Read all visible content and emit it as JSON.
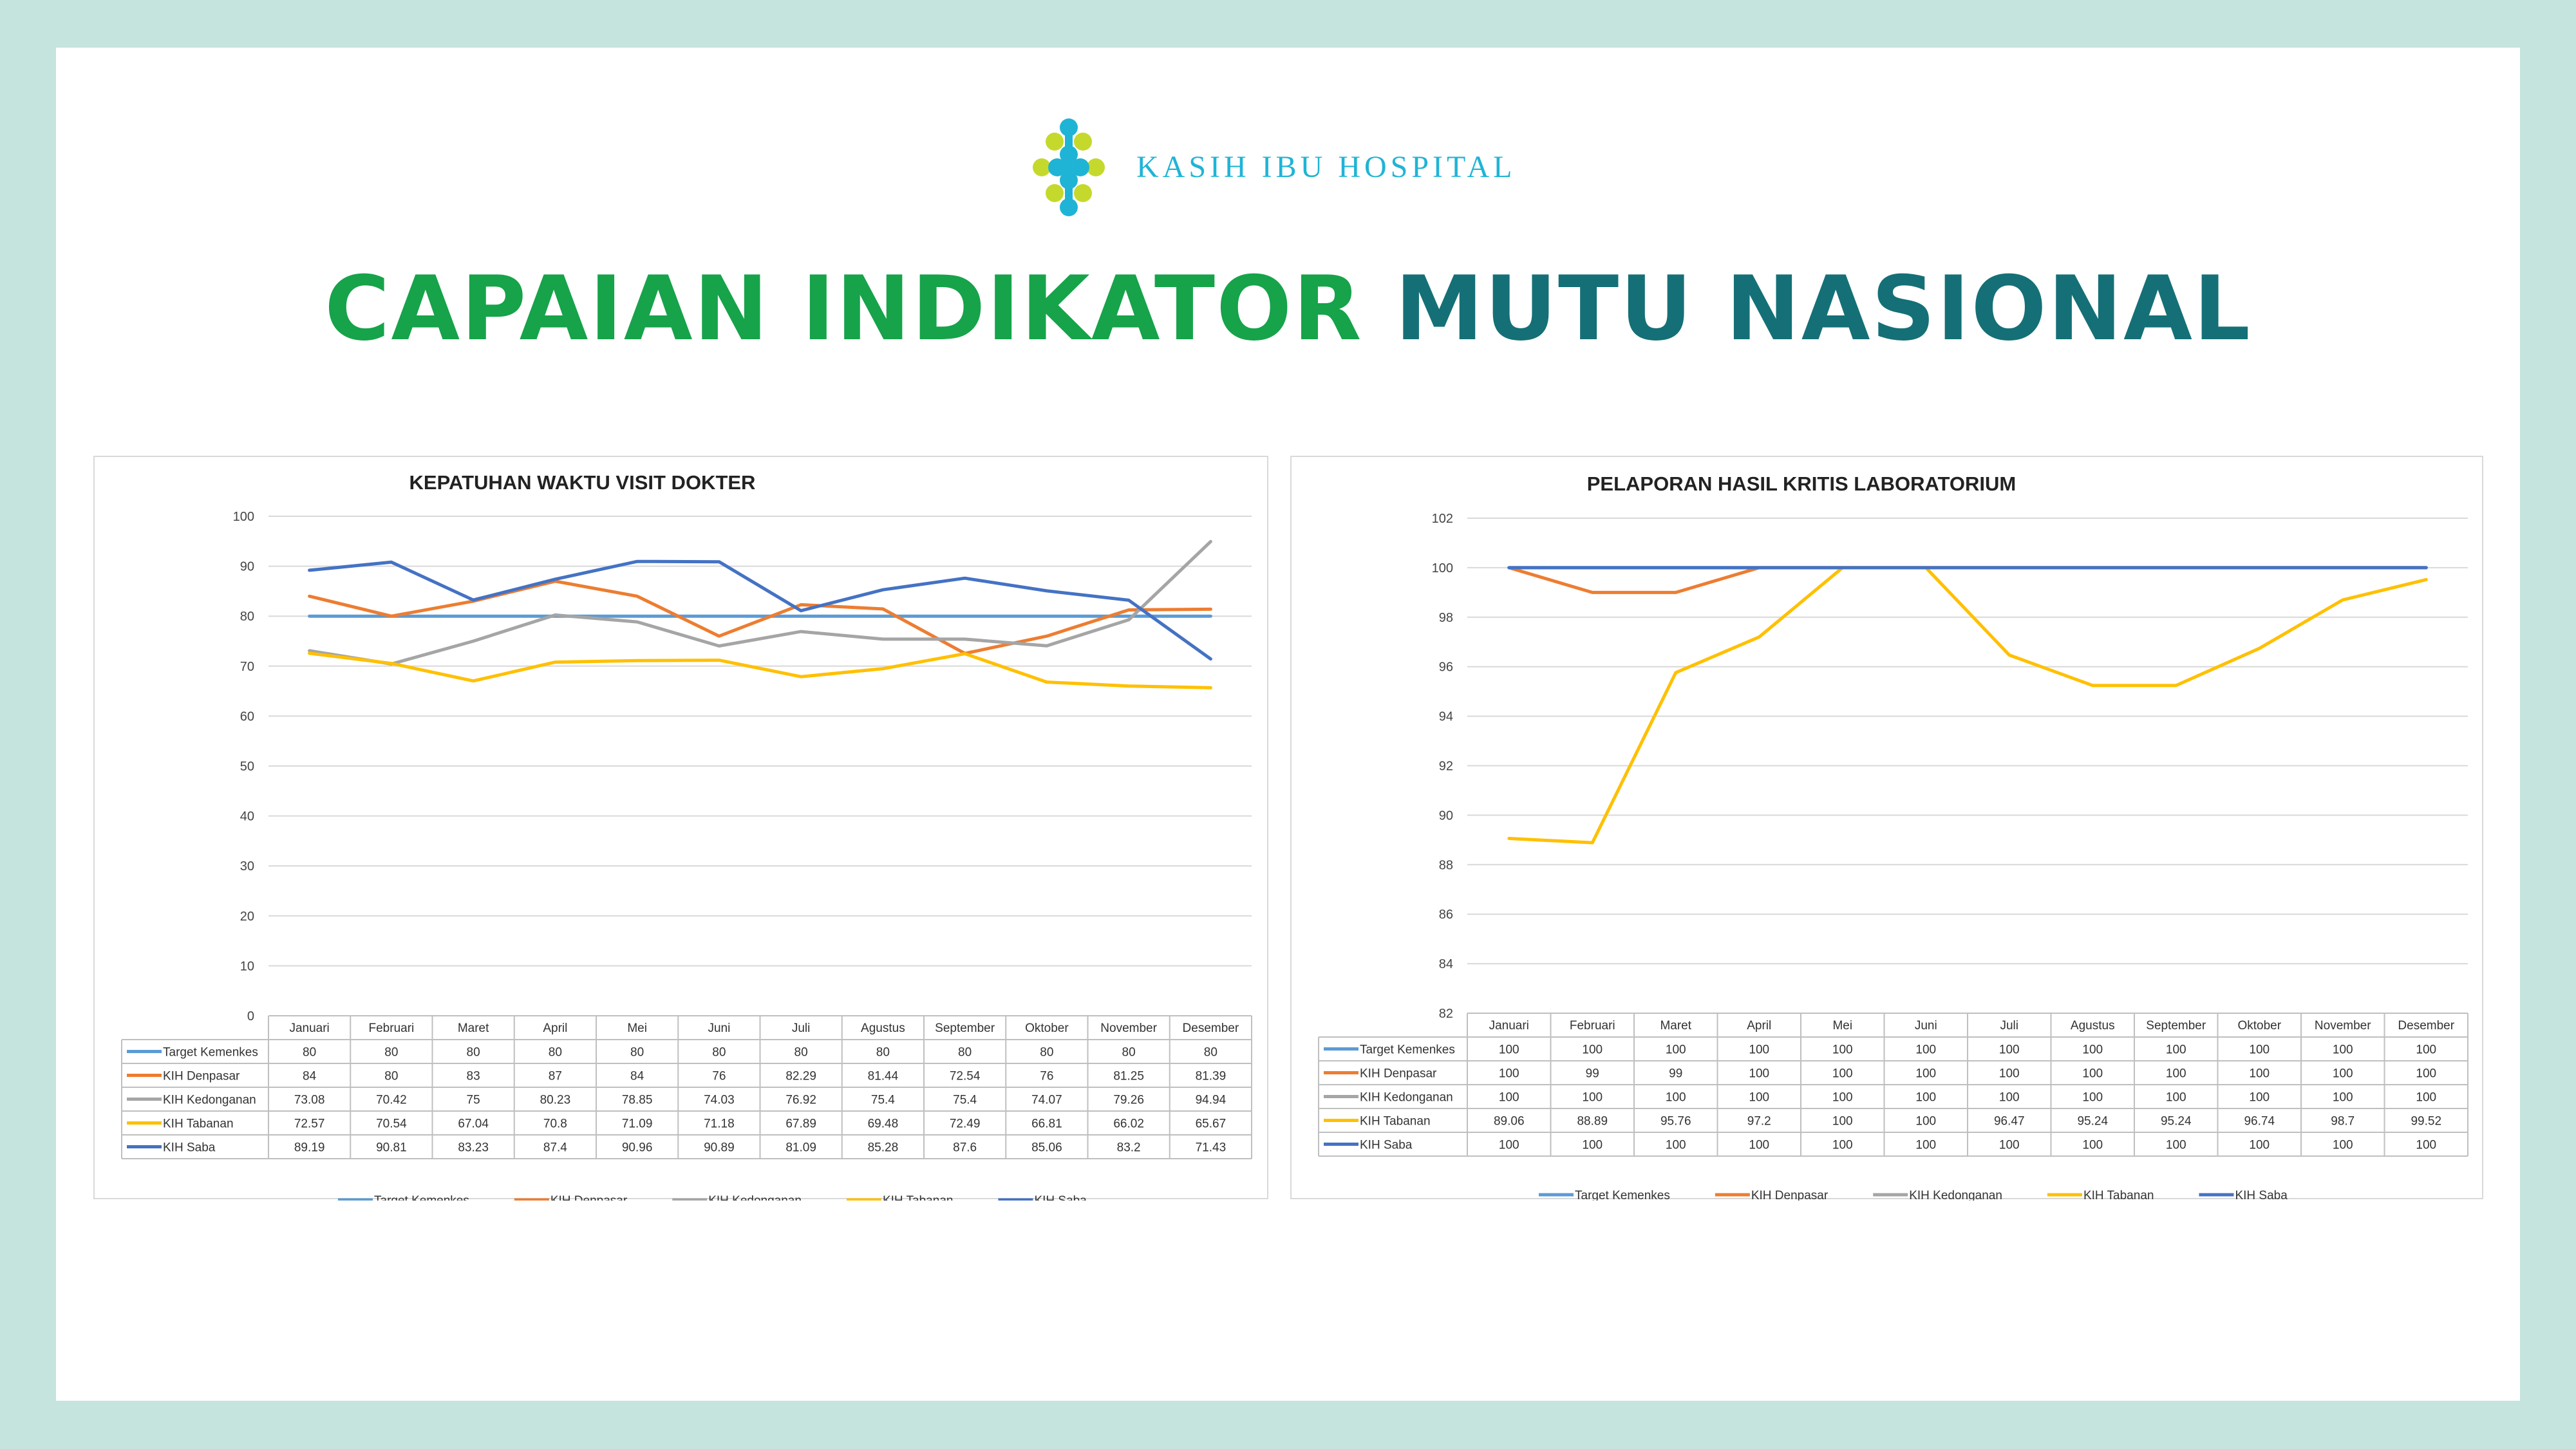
{
  "brand": {
    "name": "KASIH IBU HOSPITAL"
  },
  "page_title": {
    "part1": "CAPAIAN INDIKATOR",
    "part2": "MUTU NASIONAL"
  },
  "colors": {
    "background": "#c5e4dd",
    "title_green": "#16a34a",
    "title_teal": "#147076",
    "brand_blue": "#1fb4d6",
    "logo_lime": "#c5d92d"
  },
  "chart_data": [
    {
      "type": "line",
      "title": "KEPATUHAN WAKTU VISIT DOKTER",
      "categories": [
        "Januari",
        "Februari",
        "Maret",
        "April",
        "Mei",
        "Juni",
        "Juli",
        "Agustus",
        "September",
        "Oktober",
        "November",
        "Desember"
      ],
      "ylim": [
        0,
        100
      ],
      "yticks": [
        0,
        10,
        20,
        30,
        40,
        50,
        60,
        70,
        80,
        90,
        100
      ],
      "grid": true,
      "legend": "bottom",
      "data_table": true,
      "series": [
        {
          "name": "Target Kemenkes",
          "color": "#5b9bd5",
          "values": [
            80,
            80,
            80,
            80,
            80,
            80,
            80,
            80,
            80,
            80,
            80,
            80
          ]
        },
        {
          "name": "KIH Denpasar",
          "color": "#ed7d31",
          "values": [
            84,
            80,
            83,
            87,
            84,
            76,
            82.29,
            81.44,
            72.54,
            76,
            81.25,
            81.39
          ]
        },
        {
          "name": "KIH Kedonganan",
          "color": "#a5a5a5",
          "values": [
            73.08,
            70.42,
            75,
            80.23,
            78.85,
            74.03,
            76.92,
            75.4,
            75.4,
            74.07,
            79.26,
            94.94
          ]
        },
        {
          "name": "KIH Tabanan",
          "color": "#ffc000",
          "values": [
            72.57,
            70.54,
            67.04,
            70.8,
            71.09,
            71.18,
            67.89,
            69.48,
            72.49,
            66.81,
            66.02,
            65.67
          ]
        },
        {
          "name": "KIH Saba",
          "color": "#4472c4",
          "values": [
            89.19,
            90.81,
            83.23,
            87.4,
            90.96,
            90.89,
            81.09,
            85.28,
            87.6,
            85.06,
            83.2,
            71.43
          ]
        }
      ]
    },
    {
      "type": "line",
      "title": "PELAPORAN HASIL KRITIS LABORATORIUM",
      "categories": [
        "Januari",
        "Februari",
        "Maret",
        "April",
        "Mei",
        "Juni",
        "Juli",
        "Agustus",
        "September",
        "Oktober",
        "November",
        "Desember"
      ],
      "ylim": [
        82,
        102
      ],
      "yticks": [
        82,
        84,
        86,
        88,
        90,
        92,
        94,
        96,
        98,
        100,
        102
      ],
      "grid": true,
      "legend": "bottom",
      "data_table": true,
      "series": [
        {
          "name": "Target Kemenkes",
          "color": "#5b9bd5",
          "values": [
            100,
            100,
            100,
            100,
            100,
            100,
            100,
            100,
            100,
            100,
            100,
            100
          ]
        },
        {
          "name": "KIH Denpasar",
          "color": "#ed7d31",
          "values": [
            100,
            99,
            99,
            100,
            100,
            100,
            100,
            100,
            100,
            100,
            100,
            100
          ]
        },
        {
          "name": "KIH Kedonganan",
          "color": "#a5a5a5",
          "values": [
            100,
            100,
            100,
            100,
            100,
            100,
            100,
            100,
            100,
            100,
            100,
            100
          ]
        },
        {
          "name": "KIH Tabanan",
          "color": "#ffc000",
          "values": [
            89.06,
            88.89,
            95.76,
            97.2,
            100,
            100,
            96.47,
            95.24,
            95.24,
            96.74,
            98.7,
            99.52
          ]
        },
        {
          "name": "KIH Saba",
          "color": "#4472c4",
          "values": [
            100,
            100,
            100,
            100,
            100,
            100,
            100,
            100,
            100,
            100,
            100,
            100
          ]
        }
      ]
    }
  ]
}
